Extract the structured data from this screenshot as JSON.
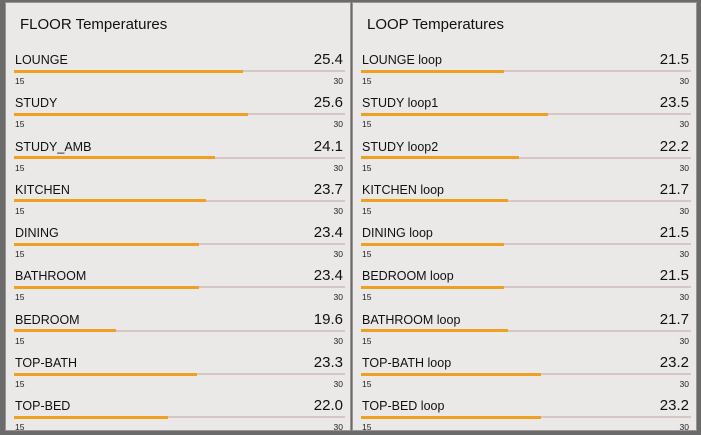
{
  "panels": [
    {
      "title": "FLOOR Temperatures",
      "min_label": "15",
      "max_label": "30",
      "min": 15,
      "max": 30,
      "items": [
        {
          "label": "LOUNGE",
          "value": "25.4"
        },
        {
          "label": "STUDY",
          "value": "25.6"
        },
        {
          "label": "STUDY_AMB",
          "value": "24.1"
        },
        {
          "label": "KITCHEN",
          "value": "23.7"
        },
        {
          "label": "DINING",
          "value": "23.4"
        },
        {
          "label": "BATHROOM",
          "value": "23.4"
        },
        {
          "label": "BEDROOM",
          "value": "19.6"
        },
        {
          "label": "TOP-BATH",
          "value": "23.3"
        },
        {
          "label": "TOP-BED",
          "value": "22.0"
        }
      ]
    },
    {
      "title": "LOOP Temperatures",
      "min_label": "15",
      "max_label": "30",
      "min": 15,
      "max": 30,
      "items": [
        {
          "label": "LOUNGE loop",
          "value": "21.5"
        },
        {
          "label": "STUDY loop1",
          "value": "23.5"
        },
        {
          "label": "STUDY loop2",
          "value": "22.2"
        },
        {
          "label": "KITCHEN loop",
          "value": "21.7"
        },
        {
          "label": "DINING loop",
          "value": "21.5"
        },
        {
          "label": "BEDROOM loop",
          "value": "21.5"
        },
        {
          "label": "BATHROOM loop",
          "value": "21.7"
        },
        {
          "label": "TOP-BATH loop",
          "value": "23.2"
        },
        {
          "label": "TOP-BED loop",
          "value": "23.2"
        }
      ]
    }
  ],
  "colors": {
    "bar_fill": "#f0a020",
    "track": "#d6c6c6",
    "panel_bg": "#ebe8e8",
    "page_bg": "#6b6b6b"
  }
}
